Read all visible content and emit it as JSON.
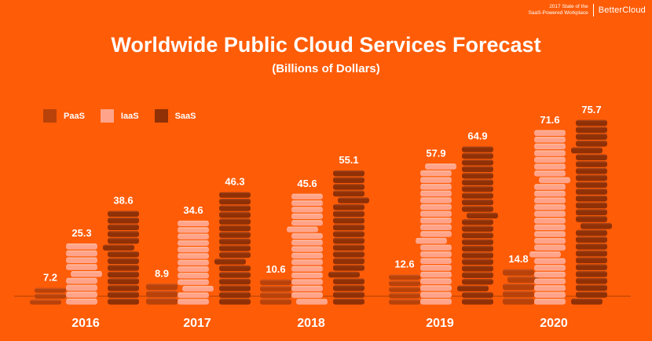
{
  "brand": {
    "subtitle_line1": "2017 State of the",
    "subtitle_line2": "SaaS-Powered Workplace",
    "name": "BetterCloud"
  },
  "colors": {
    "background": "#ff5c07",
    "PaaS": "#b8420a",
    "IaaS": "#ffa48a",
    "SaaS": "#8f3006",
    "axis": "#c94a06"
  },
  "chart_data": {
    "type": "bar",
    "title": "Worldwide Public Cloud Services Forecast",
    "subtitle": "(Billions of Dollars)",
    "xlabel": "",
    "ylabel": "",
    "categories": [
      "2016",
      "2017",
      "2018",
      "2019",
      "2020"
    ],
    "series": [
      {
        "name": "PaaS",
        "values": [
          7.2,
          8.9,
          10.6,
          12.6,
          14.8
        ]
      },
      {
        "name": "IaaS",
        "values": [
          25.3,
          34.6,
          45.6,
          57.9,
          71.6
        ]
      },
      {
        "name": "SaaS",
        "values": [
          38.6,
          46.3,
          55.1,
          64.9,
          75.7
        ]
      }
    ],
    "ylim": [
      0,
      80
    ],
    "grid": false,
    "legend": "top-left",
    "style": "stacked-coins"
  }
}
